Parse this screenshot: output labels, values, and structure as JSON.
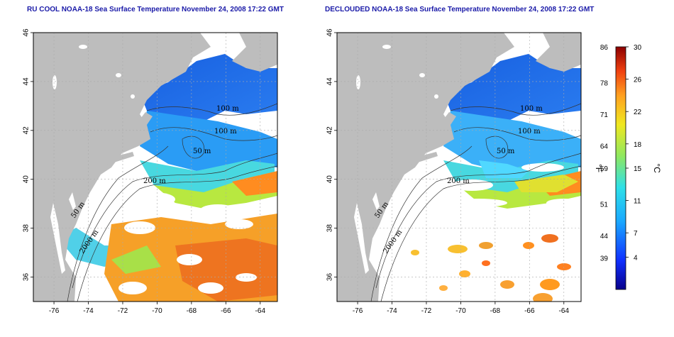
{
  "maps": [
    {
      "title": "RU COOL NOAA-18 Sea Surface Temperature November 24, 2008 17:22 GMT",
      "variant": "cloudy",
      "contour_labels": [
        "100 m",
        "100 m",
        "50 m",
        "200 m",
        "50 m",
        "2000 m"
      ]
    },
    {
      "title": "DECLOUDED NOAA-18 Sea Surface Temperature November 24, 2008 17:22 GMT",
      "variant": "declouded",
      "contour_labels": [
        "100 m",
        "100 m",
        "50 m",
        "200 m",
        "50 m",
        "2000 m"
      ]
    }
  ],
  "axes": {
    "x_ticks": [
      "-76",
      "-74",
      "-72",
      "-70",
      "-68",
      "-66",
      "-64"
    ],
    "y_ticks": [
      "36",
      "38",
      "40",
      "42",
      "44",
      "46"
    ]
  },
  "colorbar": {
    "fahrenheit_label": "°F",
    "celsius_label": "°C",
    "fahrenheit_ticks": [
      "86",
      "78",
      "71",
      "64",
      "59",
      "51",
      "44",
      "39"
    ],
    "celsius_ticks": [
      "30",
      "26",
      "22",
      "18",
      "15",
      "11",
      "7",
      "4"
    ]
  },
  "colors": {
    "land": "#bdbdbd",
    "ocean_blank": "#ffffff",
    "title": "#1a1aa8",
    "grid": "#aaaaaa"
  }
}
